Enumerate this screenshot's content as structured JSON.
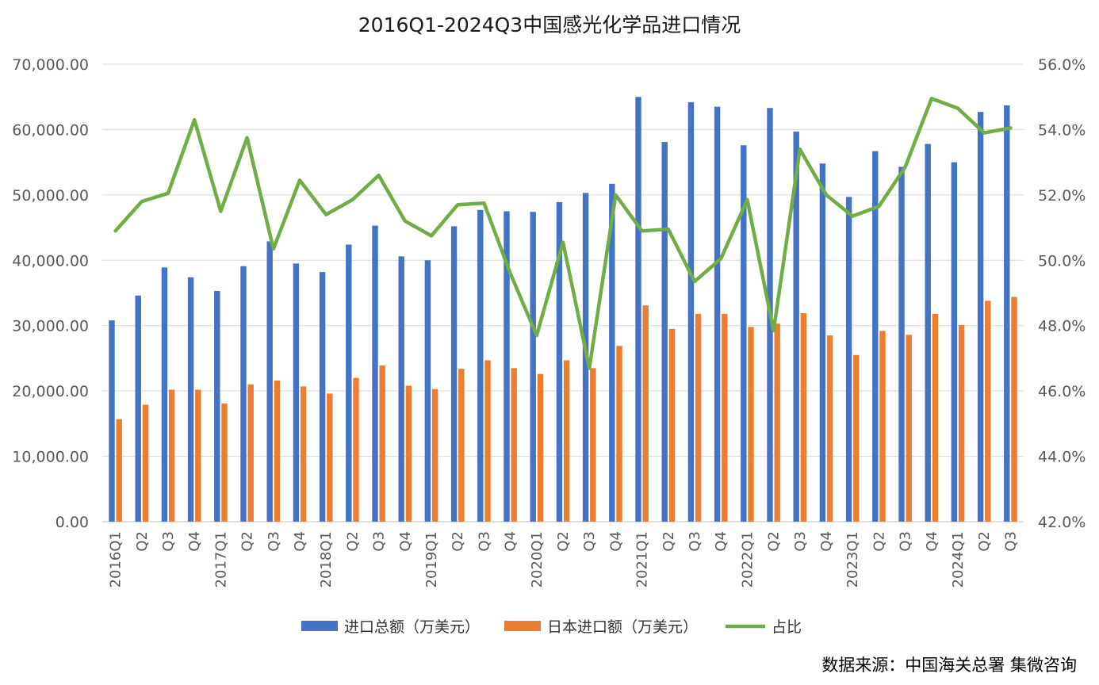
{
  "chart_data": {
    "type": "bar",
    "title": "2016Q1-2024Q3中国感光化学品进口情况",
    "source": "数据来源：中国海关总署  集微咨询",
    "categories": [
      "2016Q1",
      "Q2",
      "Q3",
      "Q4",
      "2017Q1",
      "Q2",
      "Q3",
      "Q4",
      "2018Q1",
      "Q2",
      "Q3",
      "Q4",
      "2019Q1",
      "Q2",
      "Q3",
      "Q4",
      "2020Q1",
      "Q2",
      "Q3",
      "Q4",
      "2021Q1",
      "Q2",
      "Q3",
      "Q4",
      "2022Q1",
      "Q2",
      "Q3",
      "Q4",
      "2023Q1",
      "Q2",
      "Q3",
      "Q4",
      "2024Q1",
      "Q2",
      "Q3"
    ],
    "y_left": {
      "range": [
        0,
        70000
      ],
      "ticks": [
        0,
        10000,
        20000,
        30000,
        40000,
        50000,
        60000,
        70000
      ],
      "tick_labels": [
        "0.00",
        "10,000.00",
        "20,000.00",
        "30,000.00",
        "40,000.00",
        "50,000.00",
        "60,000.00",
        "70,000.00"
      ]
    },
    "y_right": {
      "range": [
        42,
        56
      ],
      "ticks": [
        42,
        44,
        46,
        48,
        50,
        52,
        54,
        56
      ],
      "tick_labels": [
        "42.0%",
        "44.0%",
        "46.0%",
        "48.0%",
        "50.0%",
        "52.0%",
        "54.0%",
        "56.0%"
      ]
    },
    "grid": true,
    "legend_position": "bottom",
    "series": [
      {
        "name": "进口总额（万美元）",
        "type": "bar",
        "axis": "left",
        "color": "#4472C4",
        "values": [
          30800,
          34600,
          38900,
          37400,
          35300,
          39100,
          42900,
          39500,
          38200,
          42400,
          45300,
          40600,
          40000,
          45200,
          47700,
          47500,
          47400,
          48900,
          50300,
          51700,
          65000,
          58100,
          64200,
          63500,
          57600,
          63300,
          59700,
          54800,
          49700,
          56700,
          54300,
          57800,
          55000,
          62700,
          63700
        ]
      },
      {
        "name": "日本进口额（万美元）",
        "type": "bar",
        "axis": "left",
        "color": "#ED7D31",
        "values": [
          15700,
          17900,
          20200,
          20200,
          18100,
          21000,
          21600,
          20700,
          19600,
          22000,
          23900,
          20800,
          20300,
          23400,
          24700,
          23500,
          22600,
          24700,
          23500,
          26900,
          33100,
          29500,
          31800,
          31800,
          29800,
          30300,
          31900,
          28500,
          25500,
          29200,
          28600,
          31800,
          30100,
          33800,
          34400
        ]
      },
      {
        "name": "占比",
        "type": "line",
        "axis": "right",
        "color": "#70AD47",
        "values": [
          50.9,
          51.8,
          52.05,
          54.3,
          51.5,
          53.75,
          50.35,
          52.45,
          51.4,
          51.85,
          52.6,
          51.2,
          50.75,
          51.7,
          51.75,
          49.6,
          47.7,
          50.55,
          46.7,
          52.0,
          50.9,
          50.95,
          49.35,
          50.05,
          51.85,
          47.85,
          53.4,
          52.0,
          51.35,
          51.65,
          52.85,
          54.95,
          54.65,
          53.9,
          54.05
        ]
      }
    ]
  }
}
